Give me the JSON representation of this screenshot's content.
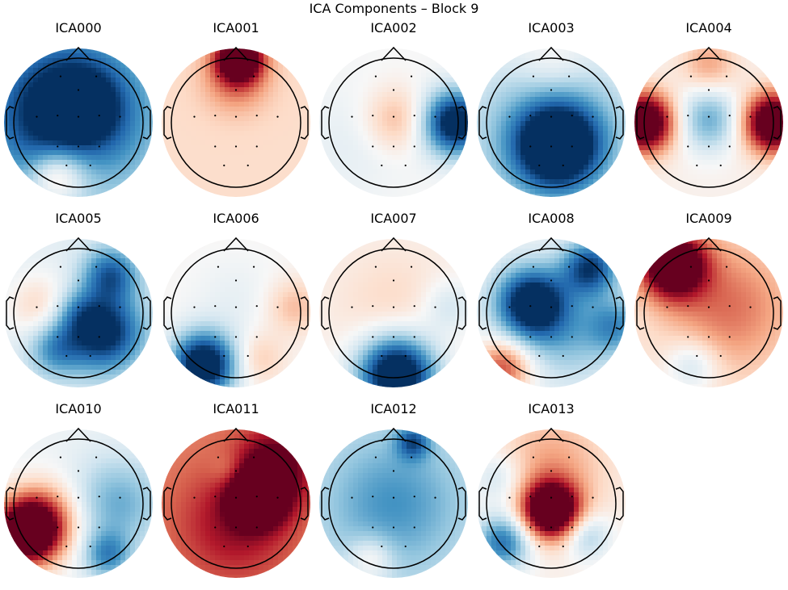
{
  "figure": {
    "title": "ICA Components – Block 9"
  },
  "colormap": {
    "name": "RdBu_r",
    "stops": [
      "#053061",
      "#2166ac",
      "#4393c3",
      "#92c5de",
      "#d1e5f0",
      "#f7f7f7",
      "#fddbc7",
      "#f4a582",
      "#d6604d",
      "#b2182b",
      "#67001f"
    ]
  },
  "components": [
    {
      "label": "ICA000",
      "blobs": [
        [
          -0.2,
          -0.15,
          0.85,
          -1.1
        ],
        [
          0.05,
          -0.25,
          0.35,
          -0.5
        ],
        [
          -0.35,
          0.82,
          0.3,
          0.55
        ],
        [
          0.0,
          0.7,
          0.4,
          0.2
        ]
      ],
      "base": -0.15
    },
    {
      "label": "ICA001",
      "blobs": [
        [
          0.05,
          -1.0,
          0.25,
          1.3
        ],
        [
          0.0,
          -0.65,
          0.35,
          0.35
        ]
      ],
      "base": 0.18
    },
    {
      "label": "ICA002",
      "blobs": [
        [
          0.95,
          0.0,
          0.35,
          -1.2
        ],
        [
          0.05,
          -0.05,
          0.35,
          0.35
        ],
        [
          -0.6,
          0.3,
          0.6,
          -0.1
        ]
      ],
      "base": 0.0
    },
    {
      "label": "ICA003",
      "blobs": [
        [
          0.1,
          0.35,
          0.45,
          -1.2
        ],
        [
          0.0,
          0.2,
          0.95,
          -0.5
        ],
        [
          0.0,
          -0.9,
          0.4,
          0.2
        ]
      ],
      "base": 0.0
    },
    {
      "label": "ICA004",
      "blobs": [
        [
          -1.0,
          0.0,
          0.32,
          1.4
        ],
        [
          1.0,
          0.0,
          0.32,
          1.4
        ],
        [
          0.0,
          -0.05,
          0.35,
          -0.55
        ],
        [
          0.0,
          -0.9,
          0.3,
          0.35
        ]
      ],
      "base": 0.05
    },
    {
      "label": "ICA005",
      "blobs": [
        [
          0.4,
          0.3,
          0.42,
          -1.0
        ],
        [
          0.5,
          -0.6,
          0.3,
          -0.7
        ],
        [
          -0.6,
          -0.1,
          0.35,
          0.3
        ],
        [
          -0.35,
          0.55,
          0.3,
          -0.5
        ],
        [
          0.0,
          0.0,
          0.25,
          -0.3
        ]
      ],
      "base": -0.1
    },
    {
      "label": "ICA006",
      "blobs": [
        [
          -0.5,
          0.8,
          0.35,
          -1.3
        ],
        [
          0.35,
          0.7,
          0.28,
          0.25
        ],
        [
          0.9,
          -0.1,
          0.3,
          0.3
        ],
        [
          0.0,
          -0.2,
          0.5,
          -0.1
        ]
      ],
      "base": 0.02
    },
    {
      "label": "ICA007",
      "blobs": [
        [
          0.05,
          0.95,
          0.42,
          -1.4
        ],
        [
          0.85,
          -0.1,
          0.3,
          -0.25
        ],
        [
          0.0,
          -0.1,
          0.6,
          0.15
        ]
      ],
      "base": 0.05
    },
    {
      "label": "ICA008",
      "blobs": [
        [
          -0.3,
          -0.15,
          0.38,
          -1.2
        ],
        [
          0.6,
          -0.7,
          0.3,
          -0.9
        ],
        [
          -0.75,
          0.85,
          0.3,
          0.7
        ],
        [
          0.3,
          0.35,
          0.5,
          -0.35
        ],
        [
          1.0,
          0.2,
          0.3,
          -0.5
        ]
      ],
      "base": -0.05
    },
    {
      "label": "ICA009",
      "blobs": [
        [
          -0.55,
          -0.75,
          0.35,
          1.4
        ],
        [
          0.3,
          -0.1,
          0.7,
          0.45
        ],
        [
          -0.25,
          0.8,
          0.3,
          -0.35
        ]
      ],
      "base": 0.1
    },
    {
      "label": "ICA010",
      "blobs": [
        [
          -0.8,
          0.45,
          0.35,
          1.5
        ],
        [
          -0.5,
          0.2,
          0.4,
          0.5
        ],
        [
          0.6,
          0.0,
          0.5,
          -0.45
        ],
        [
          0.45,
          0.8,
          0.25,
          -0.55
        ]
      ],
      "base": -0.05
    },
    {
      "label": "ICA011",
      "blobs": [
        [
          0.35,
          -0.1,
          0.28,
          1.3
        ],
        [
          0.6,
          -0.6,
          0.4,
          0.6
        ],
        [
          -0.1,
          -0.5,
          0.2,
          -0.2
        ],
        [
          0.0,
          0.3,
          0.6,
          0.4
        ]
      ],
      "base": 0.5
    },
    {
      "label": "ICA012",
      "blobs": [
        [
          0.0,
          0.0,
          0.8,
          -0.45
        ],
        [
          0.3,
          -0.95,
          0.18,
          -0.6
        ],
        [
          -0.35,
          0.85,
          0.25,
          0.35
        ]
      ],
      "base": -0.15
    },
    {
      "label": "ICA013",
      "blobs": [
        [
          0.0,
          0.1,
          0.3,
          1.5
        ],
        [
          -0.75,
          0.6,
          0.3,
          -0.8
        ],
        [
          0.55,
          0.5,
          0.25,
          -0.4
        ],
        [
          0.0,
          -0.6,
          0.6,
          0.35
        ],
        [
          -0.8,
          -0.4,
          0.3,
          -0.3
        ]
      ],
      "base": 0.05
    }
  ]
}
